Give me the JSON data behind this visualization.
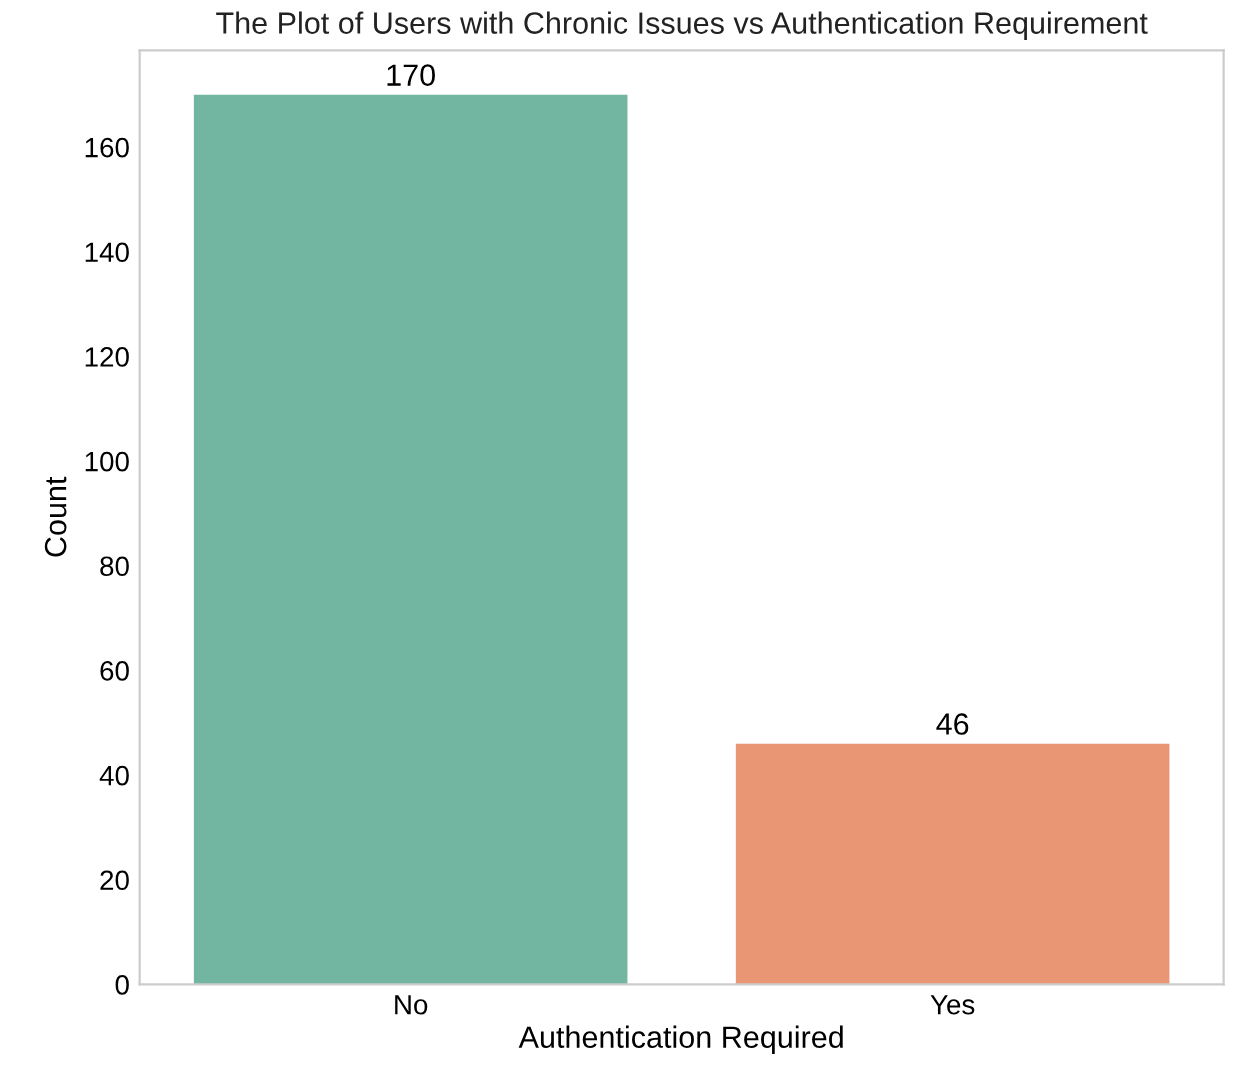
{
  "chart_data": {
    "type": "bar",
    "title": "The Plot of Users with Chronic Issues vs Authentication Requirement",
    "xlabel": "Authentication Required",
    "ylabel": "Count",
    "categories": [
      "No",
      "Yes"
    ],
    "values": [
      170,
      46
    ],
    "colors": [
      "#72b6a1",
      "#e99675"
    ],
    "ylim": [
      0,
      178.5
    ],
    "yticks": [
      0,
      20,
      40,
      60,
      80,
      100,
      120,
      140,
      160
    ],
    "data_labels": true,
    "grid": false
  }
}
